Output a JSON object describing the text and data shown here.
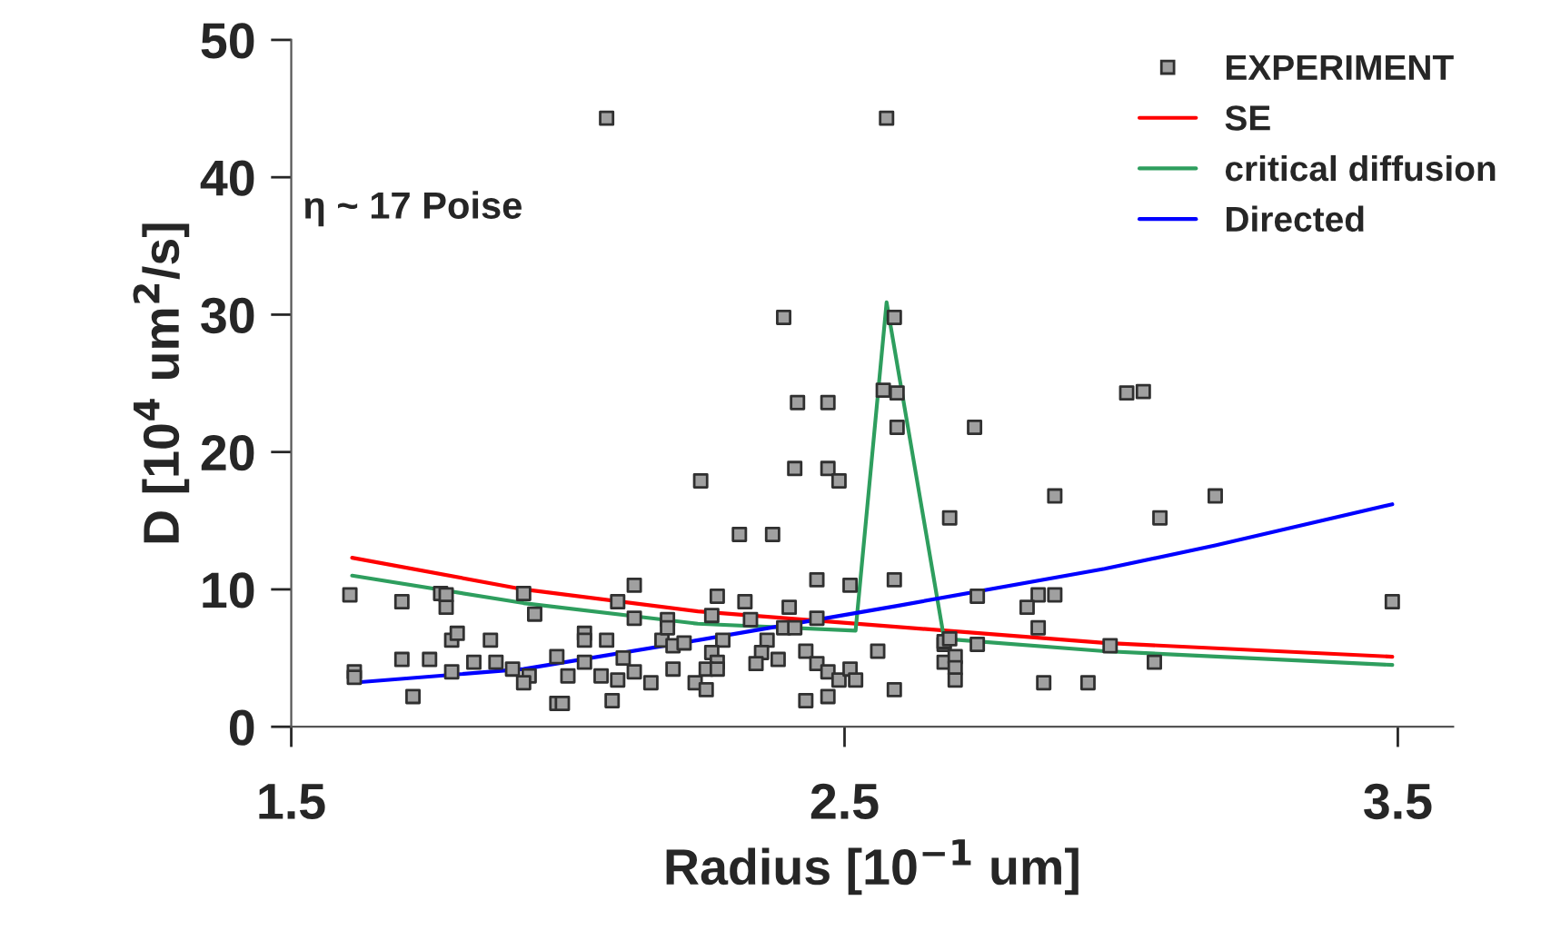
{
  "chart_data": {
    "type": "scatter",
    "xlabel": "Radius [10$^{−1}$ um]",
    "ylabel": "D [10$^{4}$ um$^{2}$/s]",
    "annotations": [
      "η ~ 17 Poise"
    ],
    "xlim": [
      1.5,
      3.6
    ],
    "xticks": [
      1.5,
      2.5,
      3.5
    ],
    "ylim": [
      0,
      50
    ],
    "yticks": [
      0,
      10,
      20,
      30,
      40,
      50
    ],
    "grid": false,
    "legend": "top right",
    "series": [
      {
        "name": "EXPERIMENT",
        "marker": "square",
        "color": "#a0a0a0",
        "x": [
          1.606,
          1.614,
          1.614,
          1.7,
          1.7,
          1.72,
          1.75,
          1.77,
          1.78,
          1.78,
          1.79,
          1.8,
          1.79,
          1.83,
          1.86,
          1.87,
          1.9,
          1.92,
          1.93,
          1.92,
          1.94,
          1.98,
          1.98,
          1.99,
          2.0,
          2.03,
          2.03,
          2.03,
          2.06,
          2.07,
          2.08,
          2.09,
          2.09,
          2.1,
          2.12,
          2.12,
          2.12,
          2.15,
          2.17,
          2.18,
          2.18,
          2.19,
          2.21,
          2.19,
          2.23,
          2.24,
          2.595,
          2.735,
          2.41,
          2.47,
          2.49,
          2.88,
          2.69,
          2.31,
          2.37,
          2.45,
          2.51,
          2.59,
          2.74,
          2.85,
          2.88,
          2.83,
          2.85,
          2.27,
          2.32,
          2.26,
          2.33,
          2.4,
          2.45,
          2.39,
          2.41,
          2.28,
          2.36,
          2.26,
          2.35,
          2.43,
          2.56,
          2.27,
          2.25,
          2.27,
          2.34,
          2.38,
          2.45,
          2.47,
          2.49,
          2.51,
          2.52,
          2.25,
          2.43,
          2.47,
          2.59,
          2.68,
          2.68,
          2.69,
          2.68,
          2.7,
          2.7,
          2.7,
          2.74,
          2.86,
          2.94,
          3.01,
          3.04,
          3.17,
          3.07,
          3.49,
          2.98,
          3.06,
          2.07,
          2.576,
          2.39,
          2.59,
          2.415,
          2.47,
          2.57,
          2.595
        ],
        "values": [
          9.6,
          4.0,
          3.6,
          9.1,
          4.9,
          2.2,
          4.9,
          9.7,
          9.6,
          8.7,
          6.3,
          6.8,
          4.0,
          4.7,
          6.3,
          4.7,
          4.2,
          9.7,
          3.7,
          3.2,
          8.2,
          5.1,
          1.7,
          1.7,
          3.7,
          6.8,
          6.3,
          4.7,
          3.7,
          6.3,
          1.9,
          3.4,
          9.1,
          5.0,
          10.3,
          4.0,
          7.9,
          3.2,
          6.3,
          7.8,
          7.2,
          5.9,
          6.1,
          4.2,
          3.2,
          17.9,
          21.8,
          21.8,
          18.8,
          18.8,
          17.9,
          16.8,
          15.2,
          14.0,
          14.0,
          10.7,
          10.3,
          10.7,
          9.5,
          9.6,
          9.6,
          8.7,
          7.2,
          9.5,
          9.1,
          8.1,
          7.8,
          8.7,
          7.9,
          7.2,
          7.2,
          6.3,
          6.3,
          5.4,
          5.4,
          5.5,
          5.5,
          4.7,
          4.2,
          4.2,
          4.6,
          4.9,
          4.6,
          4.0,
          3.4,
          4.2,
          3.4,
          2.7,
          1.9,
          2.2,
          2.7,
          6.0,
          6.2,
          6.4,
          4.7,
          5.1,
          4.3,
          3.4,
          6.0,
          3.2,
          3.2,
          24.3,
          24.4,
          16.8,
          15.2,
          9.1,
          5.9,
          4.7,
          44.3,
          44.3,
          29.8,
          29.8,
          23.6,
          23.6,
          24.5,
          24.3
        ]
      },
      {
        "name": "SE",
        "type": "line",
        "marker": "none",
        "color": "#ff0000",
        "x": [
          1.61,
          1.92,
          2.235,
          2.97,
          3.49
        ],
        "values": [
          12.3,
          10.0,
          8.4,
          6.1,
          5.1
        ]
      },
      {
        "name": "critical diffusion",
        "type": "line",
        "marker": "none",
        "color": "#2e9e5e",
        "x": [
          1.61,
          1.92,
          2.235,
          2.52,
          2.576,
          2.68,
          2.97,
          3.49
        ],
        "values": [
          11.0,
          9.0,
          7.5,
          7.0,
          30.9,
          6.4,
          5.5,
          4.5
        ]
      },
      {
        "name": "Directed",
        "type": "line",
        "marker": "none",
        "color": "#0000ff",
        "x": [
          1.61,
          1.92,
          2.235,
          2.595,
          2.97,
          3.17,
          3.49
        ],
        "values": [
          3.2,
          4.2,
          6.3,
          8.8,
          11.5,
          13.2,
          16.2
        ]
      }
    ]
  }
}
